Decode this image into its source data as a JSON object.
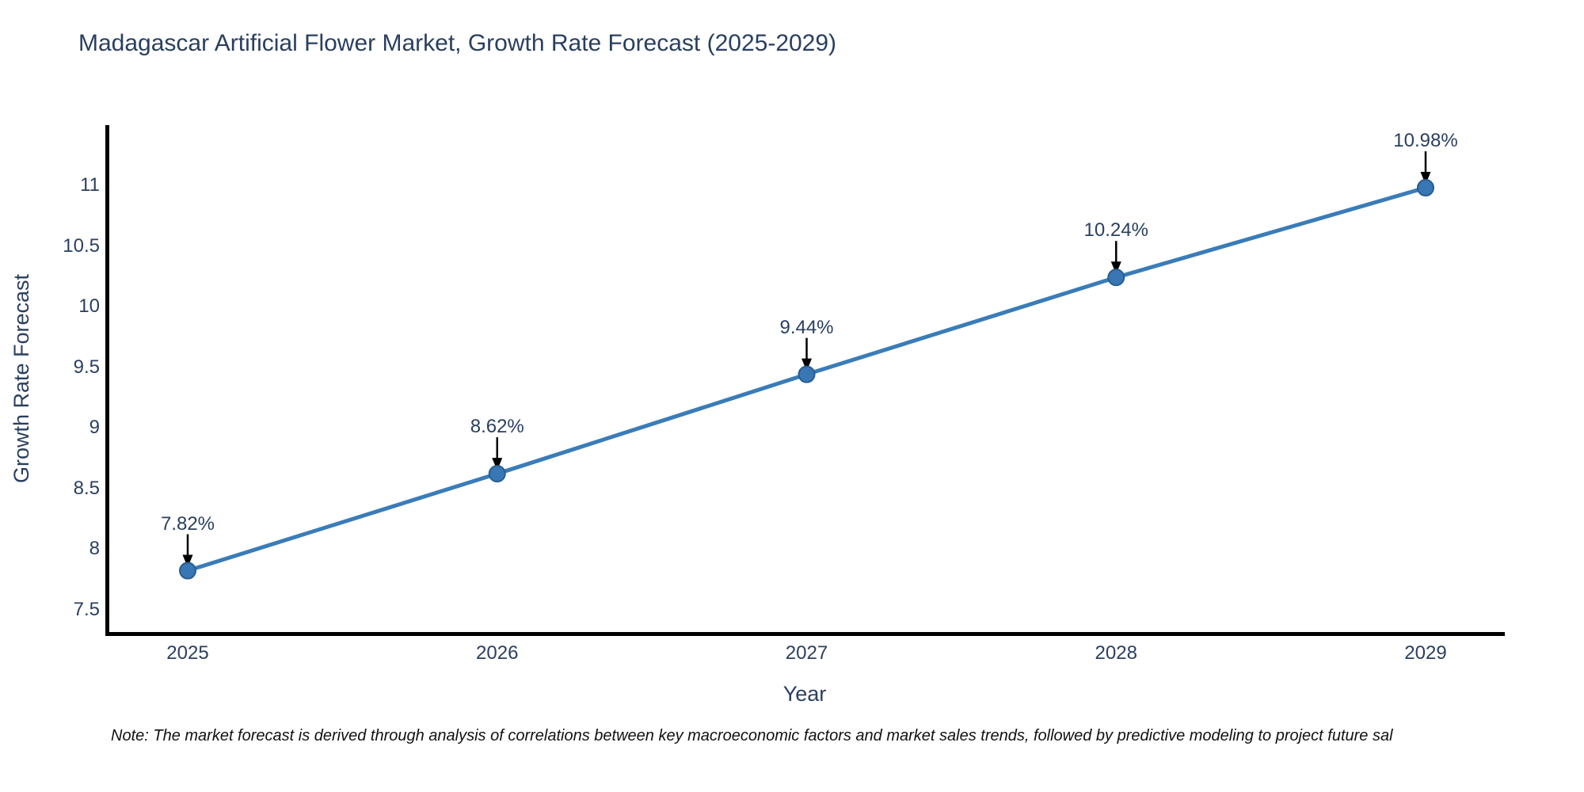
{
  "title": "Madagascar Artificial Flower Market, Growth Rate Forecast (2025-2029)",
  "note": "Note: The market forecast is derived through analysis of correlations between key macroeconomic factors and market sales trends, followed by predictive modeling to project future sal",
  "chart_data": {
    "type": "line",
    "title": "Madagascar Artificial Flower Market, Growth Rate Forecast (2025-2029)",
    "xlabel": "Year",
    "ylabel": "Growth Rate Forecast",
    "categories": [
      "2025",
      "2026",
      "2027",
      "2028",
      "2029"
    ],
    "values": [
      7.82,
      8.62,
      9.44,
      10.24,
      10.98
    ],
    "point_labels": [
      "7.82%",
      "8.62%",
      "9.44%",
      "10.24%",
      "10.98%"
    ],
    "y_tick_labels": [
      "7.5",
      "8",
      "8.5",
      "9",
      "9.5",
      "10",
      "10.5",
      "11"
    ],
    "ylim": [
      7.28,
      11.48
    ],
    "grid": false,
    "legend": false,
    "annotations": "black down-arrows from each percentage label to its data point",
    "colors": {
      "line": "#3a7cb8",
      "marker_fill": "#3876b4",
      "marker_edge": "#275e92",
      "arrow": "#000000",
      "axis": "#000000",
      "text": "#2a3f5f",
      "note_text": "#111111"
    }
  }
}
